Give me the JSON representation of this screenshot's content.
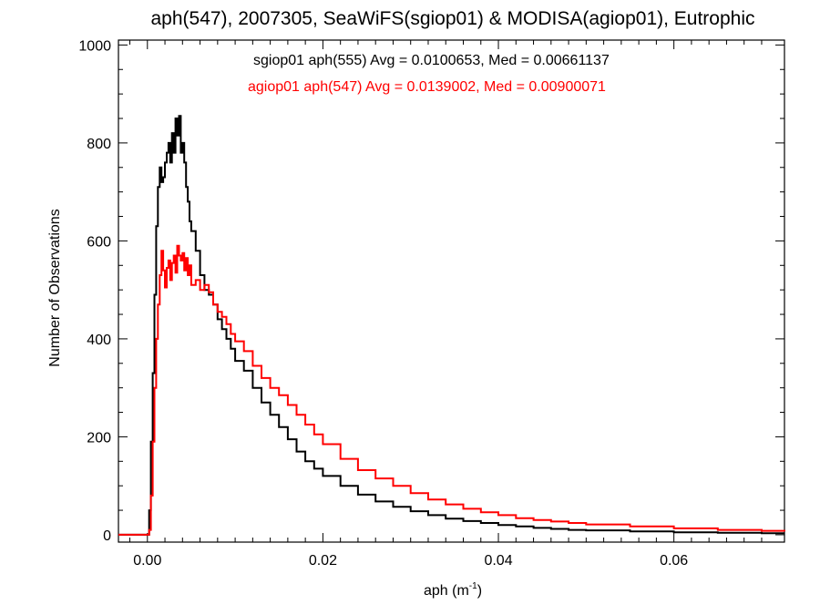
{
  "chart_data": {
    "type": "line",
    "title": "aph(547), 2007305, SeaWiFS(sgiop01) & MODISA(agiop01), Eutrophic",
    "xlabel_base": "aph (m",
    "xlabel_sup": "-1",
    "xlabel_close": ")",
    "ylabel": "Number of Observations",
    "xlim": [
      -0.0033,
      0.0726
    ],
    "ylim": [
      -15,
      1010
    ],
    "x_ticks": [
      0.0,
      0.02,
      0.04,
      0.06
    ],
    "x_tick_labels": [
      "0.00",
      "0.02",
      "0.04",
      "0.06"
    ],
    "y_ticks": [
      0,
      200,
      400,
      600,
      800,
      1000
    ],
    "y_tick_labels": [
      "0",
      "200",
      "400",
      "600",
      "800",
      "1000"
    ],
    "grid": false,
    "annotations": [
      {
        "text": "sgiop01 aph(555) Avg = 0.0100653, Med = 0.00661137",
        "color": "#000000"
      },
      {
        "text": "agiop01 aph(547) Avg = 0.0139002, Med = 0.00900071",
        "color": "#ff0000"
      }
    ],
    "series": [
      {
        "name": "sgiop01 aph(555)",
        "color": "#000000",
        "points": [
          [
            -0.0033,
            0
          ],
          [
            0.0,
            0
          ],
          [
            0.0002,
            50
          ],
          [
            0.0004,
            190
          ],
          [
            0.0006,
            330
          ],
          [
            0.0008,
            490
          ],
          [
            0.001,
            630
          ],
          [
            0.0012,
            710
          ],
          [
            0.0014,
            750
          ],
          [
            0.0016,
            720
          ],
          [
            0.0018,
            730
          ],
          [
            0.002,
            760
          ],
          [
            0.0022,
            780
          ],
          [
            0.0024,
            800
          ],
          [
            0.0026,
            760
          ],
          [
            0.0028,
            820
          ],
          [
            0.003,
            780
          ],
          [
            0.0032,
            850
          ],
          [
            0.0034,
            815
          ],
          [
            0.0036,
            855
          ],
          [
            0.0038,
            780
          ],
          [
            0.004,
            800
          ],
          [
            0.0042,
            760
          ],
          [
            0.0044,
            710
          ],
          [
            0.0046,
            680
          ],
          [
            0.0048,
            640
          ],
          [
            0.005,
            620
          ],
          [
            0.0055,
            580
          ],
          [
            0.006,
            530
          ],
          [
            0.0065,
            500
          ],
          [
            0.007,
            490
          ],
          [
            0.0075,
            470
          ],
          [
            0.008,
            440
          ],
          [
            0.0085,
            420
          ],
          [
            0.009,
            400
          ],
          [
            0.0095,
            380
          ],
          [
            0.01,
            355
          ],
          [
            0.011,
            335
          ],
          [
            0.012,
            300
          ],
          [
            0.013,
            270
          ],
          [
            0.014,
            245
          ],
          [
            0.015,
            220
          ],
          [
            0.016,
            195
          ],
          [
            0.017,
            170
          ],
          [
            0.018,
            150
          ],
          [
            0.019,
            135
          ],
          [
            0.02,
            120
          ],
          [
            0.022,
            100
          ],
          [
            0.024,
            82
          ],
          [
            0.026,
            68
          ],
          [
            0.028,
            57
          ],
          [
            0.03,
            48
          ],
          [
            0.032,
            40
          ],
          [
            0.034,
            33
          ],
          [
            0.036,
            28
          ],
          [
            0.038,
            24
          ],
          [
            0.04,
            20
          ],
          [
            0.042,
            17
          ],
          [
            0.044,
            14
          ],
          [
            0.046,
            12
          ],
          [
            0.048,
            10
          ],
          [
            0.05,
            9
          ],
          [
            0.055,
            7
          ],
          [
            0.06,
            5
          ],
          [
            0.065,
            4
          ],
          [
            0.07,
            3
          ],
          [
            0.0726,
            3
          ]
        ]
      },
      {
        "name": "agiop01 aph(547)",
        "color": "#ff0000",
        "points": [
          [
            -0.0033,
            0
          ],
          [
            0.0,
            0
          ],
          [
            0.0002,
            10
          ],
          [
            0.0004,
            80
          ],
          [
            0.0006,
            190
          ],
          [
            0.0008,
            300
          ],
          [
            0.001,
            400
          ],
          [
            0.0012,
            470
          ],
          [
            0.0014,
            530
          ],
          [
            0.0016,
            580
          ],
          [
            0.0018,
            540
          ],
          [
            0.002,
            505
          ],
          [
            0.0022,
            545
          ],
          [
            0.0024,
            560
          ],
          [
            0.0026,
            520
          ],
          [
            0.0028,
            555
          ],
          [
            0.003,
            570
          ],
          [
            0.0032,
            535
          ],
          [
            0.0034,
            590
          ],
          [
            0.0036,
            570
          ],
          [
            0.0038,
            560
          ],
          [
            0.004,
            575
          ],
          [
            0.0042,
            540
          ],
          [
            0.0044,
            565
          ],
          [
            0.0046,
            530
          ],
          [
            0.0048,
            550
          ],
          [
            0.005,
            510
          ],
          [
            0.0055,
            520
          ],
          [
            0.006,
            500
          ],
          [
            0.0065,
            510
          ],
          [
            0.007,
            495
          ],
          [
            0.0075,
            470
          ],
          [
            0.008,
            455
          ],
          [
            0.0085,
            445
          ],
          [
            0.009,
            430
          ],
          [
            0.0095,
            410
          ],
          [
            0.01,
            395
          ],
          [
            0.011,
            375
          ],
          [
            0.012,
            345
          ],
          [
            0.013,
            320
          ],
          [
            0.014,
            300
          ],
          [
            0.015,
            285
          ],
          [
            0.016,
            265
          ],
          [
            0.017,
            245
          ],
          [
            0.018,
            225
          ],
          [
            0.019,
            205
          ],
          [
            0.02,
            185
          ],
          [
            0.022,
            155
          ],
          [
            0.024,
            132
          ],
          [
            0.026,
            115
          ],
          [
            0.028,
            100
          ],
          [
            0.03,
            85
          ],
          [
            0.032,
            72
          ],
          [
            0.034,
            62
          ],
          [
            0.036,
            53
          ],
          [
            0.038,
            46
          ],
          [
            0.04,
            40
          ],
          [
            0.042,
            34
          ],
          [
            0.044,
            30
          ],
          [
            0.046,
            27
          ],
          [
            0.048,
            24
          ],
          [
            0.05,
            21
          ],
          [
            0.055,
            17
          ],
          [
            0.06,
            13
          ],
          [
            0.065,
            10
          ],
          [
            0.07,
            8
          ],
          [
            0.0726,
            7
          ]
        ]
      }
    ]
  }
}
